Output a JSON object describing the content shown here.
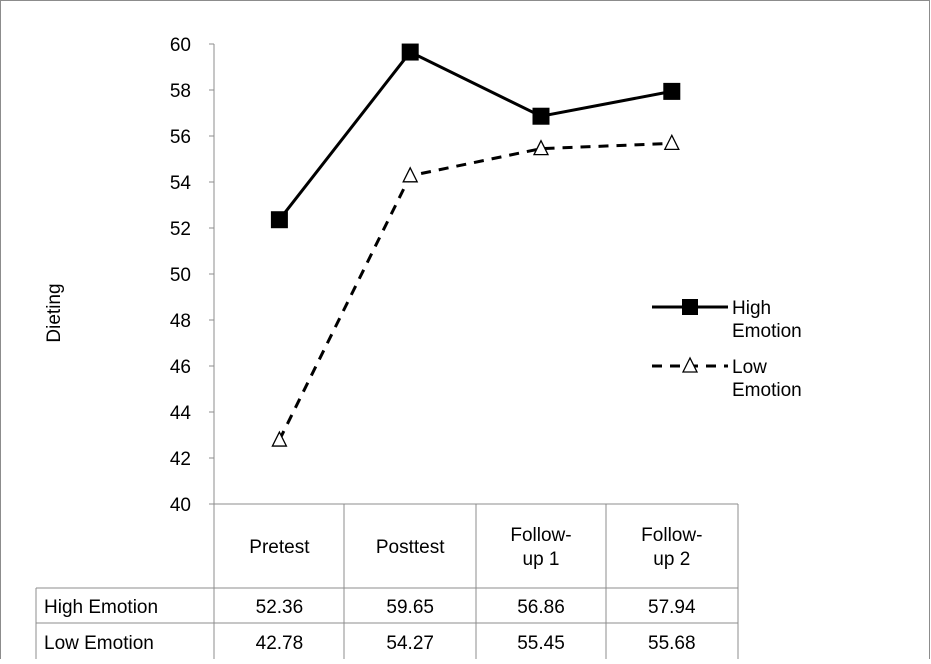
{
  "chart_data": {
    "type": "line",
    "ylabel": "Dieting",
    "xlabel": "",
    "ylim": [
      40,
      60
    ],
    "ytick_step": 2,
    "categories": [
      "Pretest",
      "Posttest",
      "Follow-up 1",
      "Follow-up 2"
    ],
    "category_display": [
      [
        "Pretest"
      ],
      [
        "Posttest"
      ],
      [
        "Follow-",
        "up 1"
      ],
      [
        "Follow-",
        "up 2"
      ]
    ],
    "series": [
      {
        "name": "High Emotion",
        "legend_lines": [
          "High",
          "Emotion"
        ],
        "values": [
          52.36,
          59.65,
          56.86,
          57.94
        ],
        "values_text": [
          "52.36",
          "59.65",
          "56.86",
          "57.94"
        ],
        "line_style": "solid",
        "marker": "filled-square",
        "color": "#000000"
      },
      {
        "name": "Low Emotion",
        "legend_lines": [
          "Low",
          "Emotion"
        ],
        "values": [
          42.78,
          54.27,
          55.45,
          55.68
        ],
        "values_text": [
          "42.78",
          "54.27",
          "55.45",
          "55.68"
        ],
        "line_style": "dashed",
        "marker": "open-triangle",
        "color": "#000000"
      }
    ],
    "legend_position": "right",
    "data_table": true,
    "grid": false
  }
}
